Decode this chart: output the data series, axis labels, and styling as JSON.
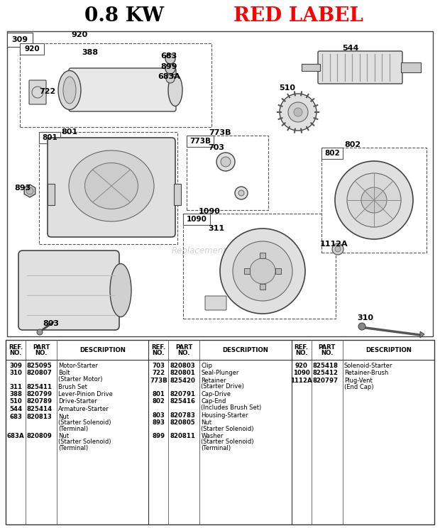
{
  "title1": "0.8 KW",
  "title2": "RED LABEL",
  "bg_color": "#ffffff",
  "col1_data": [
    [
      "309",
      "825095",
      "Motor-Starter"
    ],
    [
      "310",
      "820807",
      "Bolt",
      "(Starter Motor)"
    ],
    [
      "311",
      "825411",
      "Brush Set"
    ],
    [
      "388",
      "820799",
      "Lever-Pinion Drive"
    ],
    [
      "510",
      "820789",
      "Drive-Starter"
    ],
    [
      "544",
      "825414",
      "Armature-Starter"
    ],
    [
      "683",
      "820813",
      "Nut",
      "(Starter Solenoid)",
      "(Terminal)"
    ],
    [
      "683A",
      "820809",
      "Nut",
      "(Starter Solenoid)",
      "(Terminal)"
    ]
  ],
  "col2_data": [
    [
      "703",
      "820803",
      "Clip"
    ],
    [
      "722",
      "820801",
      "Seal-Plunger"
    ],
    [
      "773B",
      "825420",
      "Retainer",
      "(Starter Drive)"
    ],
    [
      "801",
      "820791",
      "Cap-Drive"
    ],
    [
      "802",
      "825416",
      "Cap-End",
      "(Includes Brush Set)"
    ],
    [
      "803",
      "820783",
      "Housing-Starter"
    ],
    [
      "893",
      "820805",
      "Nut",
      "(Starter Solenoid)"
    ],
    [
      "899",
      "820811",
      "Washer",
      "(Starter Solenoid)",
      "(Terminal)"
    ]
  ],
  "col3_data": [
    [
      "920",
      "825418",
      "Solenoid-Starter"
    ],
    [
      "1090",
      "825412",
      "Retainer-Brush"
    ],
    [
      "1112A",
      "820797",
      "Plug-Vent",
      "(End Cap)"
    ]
  ]
}
